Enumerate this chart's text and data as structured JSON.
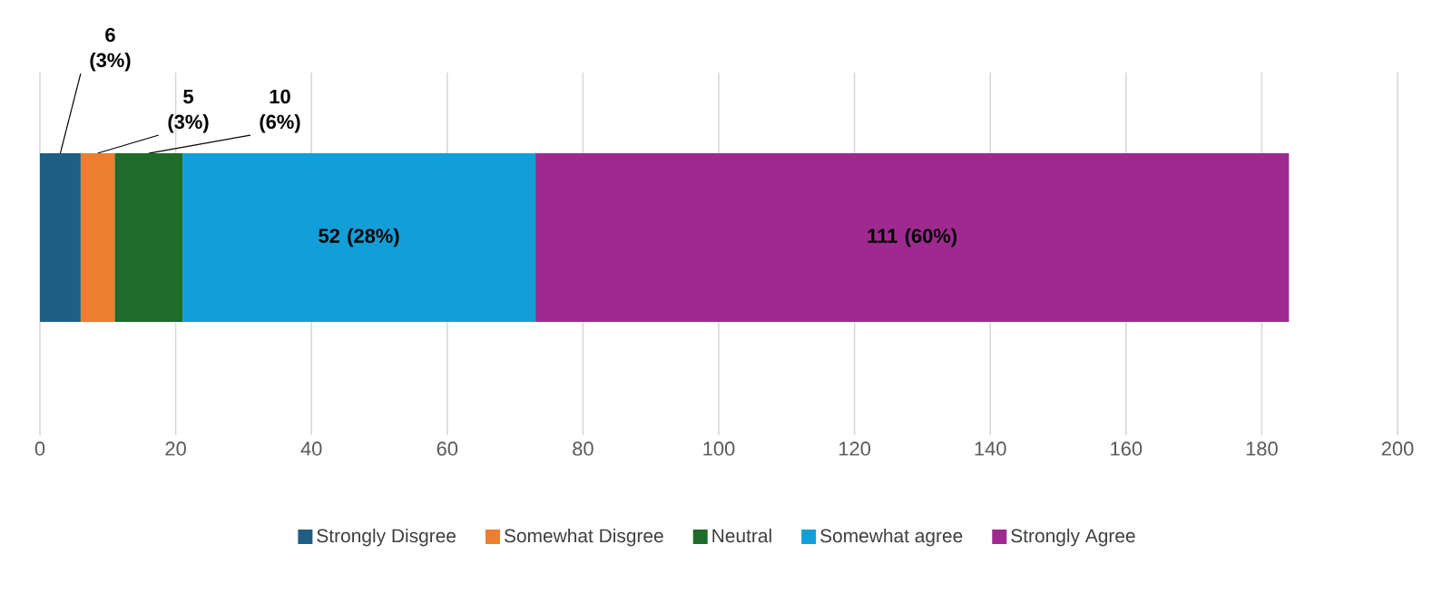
{
  "chart_data": {
    "type": "bar",
    "orientation": "horizontal",
    "stacked": true,
    "categories": [
      null
    ],
    "series": [
      {
        "name": "Strongly Disgree",
        "color": "#1f5f85",
        "values": [
          6
        ],
        "value_labels": [
          "6 (3%)"
        ]
      },
      {
        "name": "Somewhat Disgree",
        "color": "#ed7d31",
        "values": [
          5
        ],
        "value_labels": [
          "5 (3%)"
        ]
      },
      {
        "name": "Neutral",
        "color": "#1e6b2a",
        "values": [
          10
        ],
        "value_labels": [
          "10 (6%)"
        ]
      },
      {
        "name": "Somewhat agree",
        "color": "#129fd9",
        "values": [
          52
        ],
        "value_labels": [
          "52 (28%)"
        ]
      },
      {
        "name": "Strongly Agree",
        "color": "#9e2a8f",
        "values": [
          111
        ],
        "value_labels": [
          "111 (60%)"
        ]
      }
    ],
    "xlim": [
      0,
      200
    ],
    "xticks": [
      0,
      20,
      40,
      60,
      80,
      100,
      120,
      140,
      160,
      180,
      200
    ],
    "grid": "x",
    "legend": "bottom"
  }
}
